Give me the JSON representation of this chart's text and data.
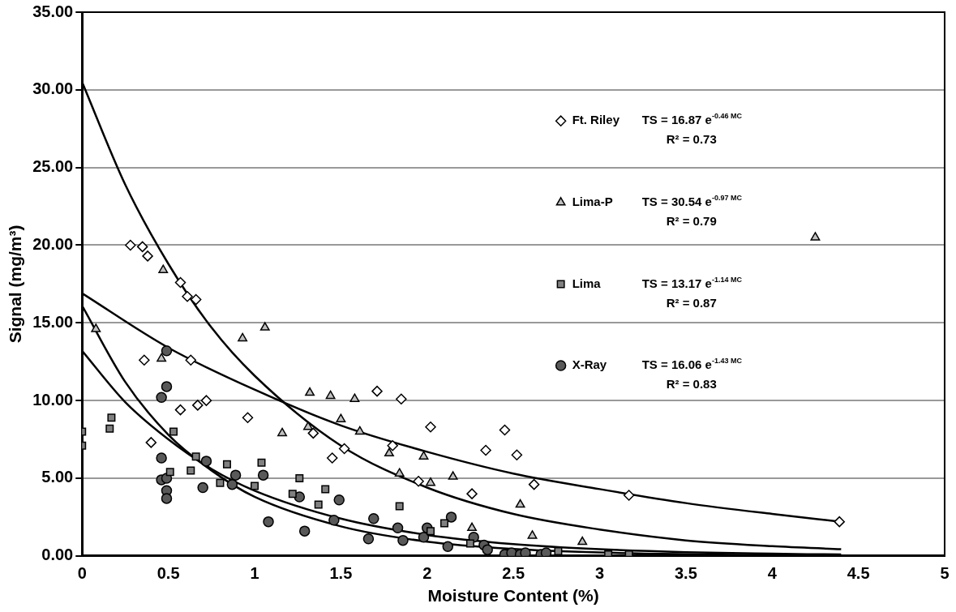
{
  "chart_data": {
    "type": "scatter",
    "xlabel": "Moisture Content (%)",
    "ylabel": "Signal (mg/m³)",
    "xlim": [
      0,
      5
    ],
    "xticks": [
      0,
      0.5,
      1,
      1.5,
      2,
      2.5,
      3,
      3.5,
      4,
      4.5,
      5
    ],
    "ylim": [
      0,
      35
    ],
    "yticks": [
      {
        "value": 0,
        "label": "0.00"
      },
      {
        "value": 5,
        "label": "5.00"
      },
      {
        "value": 10,
        "label": "10.00"
      },
      {
        "value": 15,
        "label": "15.00"
      },
      {
        "value": 20,
        "label": "20.00"
      },
      {
        "value": 25,
        "label": "25.00"
      },
      {
        "value": 30,
        "label": "30.00"
      },
      {
        "value": 35,
        "label": "35.00"
      }
    ],
    "grid": "y",
    "legend": "right",
    "annotations": [
      "TS = 16.87 e$^{-0.46 MC}$",
      "R² = 0.73",
      "TS = 30.54 e$^{-0.97 MC}$",
      "R² = 0.79",
      "TS = 13.17 e$^{-1.14 MC}$",
      "R² = 0.87",
      "TS = 16.06 e$^{-1.43 MC}$",
      "R² = 0.83"
    ],
    "series": [
      {
        "name": "Ft. Riley",
        "color": "#ffffff",
        "marker": "diamond",
        "x": [
          0.28,
          0.35,
          0.38,
          0.57,
          0.61,
          0.66,
          0.36,
          0.63,
          0.4,
          0.57,
          0.67,
          0.72,
          0.96,
          1.34,
          1.45,
          1.52,
          1.71,
          1.8,
          1.85,
          1.95,
          2.02,
          2.26,
          2.34,
          2.45,
          2.52,
          2.62,
          3.17,
          4.39
        ],
        "values": [
          20.0,
          19.9,
          19.3,
          17.6,
          16.7,
          16.5,
          12.6,
          12.6,
          7.3,
          9.4,
          9.7,
          10.0,
          8.9,
          7.9,
          6.3,
          6.9,
          10.6,
          7.1,
          10.1,
          4.8,
          8.3,
          4.0,
          6.8,
          8.1,
          6.5,
          4.6,
          3.9,
          2.2
        ]
      },
      {
        "name": "Lima-P",
        "color": "#c0c0c0",
        "marker": "triangle",
        "x": [
          0.08,
          0.46,
          0.47,
          0.93,
          1.06,
          1.16,
          1.31,
          1.32,
          1.44,
          1.5,
          1.58,
          1.61,
          1.78,
          1.84,
          1.98,
          2.02,
          2.15,
          2.26,
          2.54,
          2.61,
          2.9,
          4.25
        ],
        "values": [
          14.6,
          12.7,
          18.4,
          14.0,
          14.7,
          7.9,
          8.3,
          10.5,
          10.3,
          8.8,
          10.1,
          8.0,
          6.6,
          5.3,
          6.4,
          4.7,
          5.1,
          1.8,
          3.3,
          1.3,
          0.9,
          20.5
        ]
      },
      {
        "name": "Lima",
        "color": "#808080",
        "marker": "square",
        "x": [
          0.0,
          0.0,
          0.16,
          0.17,
          0.51,
          0.53,
          0.63,
          0.66,
          0.8,
          0.84,
          1.0,
          1.04,
          1.22,
          1.26,
          1.37,
          1.41,
          1.84,
          2.1,
          2.02,
          2.25,
          2.76,
          3.05,
          3.17
        ],
        "values": [
          8.0,
          7.1,
          8.2,
          8.9,
          5.4,
          8.0,
          5.5,
          6.4,
          4.7,
          5.9,
          4.5,
          6.0,
          4.0,
          5.0,
          3.3,
          4.3,
          3.2,
          2.1,
          1.6,
          0.8,
          0.3,
          0.1,
          0.1
        ]
      },
      {
        "name": "X-Ray",
        "color": "#595959",
        "marker": "circle",
        "x": [
          0.49,
          0.49,
          0.46,
          0.46,
          0.46,
          0.49,
          0.49,
          0.49,
          0.7,
          0.72,
          0.89,
          0.87,
          1.05,
          1.08,
          1.26,
          1.29,
          1.49,
          1.46,
          1.69,
          1.66,
          1.83,
          1.86,
          2.0,
          1.98,
          2.14,
          2.12,
          2.27,
          2.33,
          2.35,
          2.45,
          2.49,
          2.54,
          2.57,
          2.66,
          2.69
        ],
        "values": [
          13.2,
          10.9,
          10.2,
          6.3,
          4.9,
          5.0,
          4.2,
          3.7,
          4.4,
          6.1,
          5.2,
          4.6,
          5.2,
          2.2,
          3.8,
          1.6,
          3.6,
          2.3,
          2.4,
          1.1,
          1.8,
          1.0,
          1.8,
          1.2,
          2.5,
          0.6,
          1.2,
          0.7,
          0.4,
          0.1,
          0.2,
          0.1,
          0.2,
          0.1,
          0.2
        ]
      },
      {
        "type": "line",
        "color": "#000000",
        "marker": "none",
        "x": [
          0,
          0.25,
          0.5,
          0.75,
          1,
          1.5,
          2,
          2.5,
          3,
          3.5,
          4,
          4.4
        ],
        "values": [
          30.5,
          23.9,
          18.8,
          14.7,
          11.6,
          7.1,
          4.4,
          2.7,
          1.7,
          1.0,
          0.63,
          0.43
        ]
      },
      {
        "type": "line",
        "color": "#000000",
        "marker": "none",
        "x": [
          0,
          0.5,
          1,
          1.5,
          2,
          2.5,
          3,
          3.5,
          4,
          4.4
        ],
        "values": [
          16.9,
          13.4,
          10.7,
          8.4,
          6.7,
          5.3,
          4.3,
          3.4,
          2.7,
          2.2
        ]
      },
      {
        "type": "line",
        "color": "#000000",
        "marker": "none",
        "x": [
          0,
          0.25,
          0.5,
          0.75,
          1,
          1.5,
          2,
          2.5,
          3,
          3.5,
          4,
          4.4
        ],
        "values": [
          16.1,
          11.2,
          7.8,
          5.5,
          3.8,
          1.9,
          0.92,
          0.45,
          0.22,
          0.11,
          0.05,
          0.03
        ]
      },
      {
        "type": "line",
        "color": "#000000",
        "marker": "none",
        "x": [
          0,
          0.25,
          0.5,
          0.75,
          1,
          1.5,
          2,
          2.5,
          3,
          3.5,
          4,
          4.4
        ],
        "values": [
          13.2,
          9.9,
          7.5,
          5.6,
          4.2,
          2.4,
          1.35,
          0.76,
          0.43,
          0.24,
          0.14,
          0.09
        ]
      }
    ]
  }
}
